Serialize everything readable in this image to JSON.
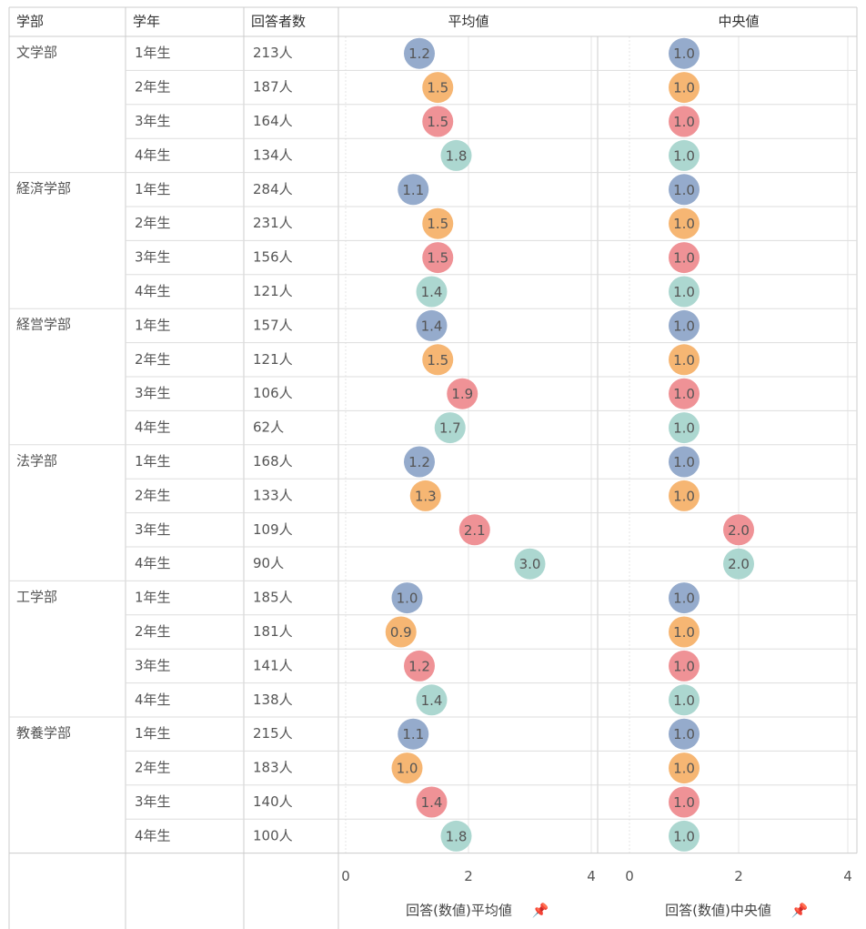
{
  "table": {
    "headers": [
      "学部",
      "学年",
      "回答者数"
    ],
    "faculties": [
      "文学部",
      "経済学部",
      "経営学部",
      "法学部",
      "工学部",
      "教養学部"
    ],
    "grades": [
      "1年生",
      "2年生",
      "3年生",
      "4年生"
    ],
    "respondents": [
      "213人",
      "187人",
      "164人",
      "134人",
      "284人",
      "231人",
      "156人",
      "121人",
      "157人",
      "121人",
      "106人",
      "62人",
      "168人",
      "133人",
      "109人",
      "90人",
      "185人",
      "181人",
      "141人",
      "138人",
      "215人",
      "183人",
      "140人",
      "100人"
    ]
  },
  "chart_data": [
    {
      "type": "dot",
      "title": "平均値",
      "axis_label": "回答(数値)平均値",
      "xlim": [
        0,
        4
      ],
      "xticks": [
        0,
        2,
        4
      ],
      "grid": true,
      "colors": [
        "#8fa6c9",
        "#f5b26b",
        "#ee8c90",
        "#a8d5ce"
      ],
      "values": [
        1.2,
        1.5,
        1.5,
        1.8,
        1.1,
        1.5,
        1.5,
        1.4,
        1.4,
        1.5,
        1.9,
        1.7,
        1.2,
        1.3,
        2.1,
        3.0,
        1.0,
        0.9,
        1.2,
        1.4,
        1.1,
        1.0,
        1.4,
        1.8
      ],
      "value_labels": [
        "1.2",
        "1.5",
        "1.5",
        "1.8",
        "1.1",
        "1.5",
        "1.5",
        "1.4",
        "1.4",
        "1.5",
        "1.9",
        "1.7",
        "1.2",
        "1.3",
        "2.1",
        "3.0",
        "1.0",
        "0.9",
        "1.2",
        "1.4",
        "1.1",
        "1.0",
        "1.4",
        "1.8"
      ]
    },
    {
      "type": "dot",
      "title": "中央値",
      "axis_label": "回答(数値)中央値",
      "xlim": [
        0,
        4
      ],
      "xticks": [
        0,
        2,
        4
      ],
      "grid": true,
      "colors": [
        "#8fa6c9",
        "#f5b26b",
        "#ee8c90",
        "#a8d5ce"
      ],
      "values": [
        1,
        1,
        1,
        1,
        1,
        1,
        1,
        1,
        1,
        1,
        1,
        1,
        1,
        1,
        2,
        2,
        1,
        1,
        1,
        1,
        1,
        1,
        1,
        1
      ],
      "value_labels": [
        "1.0",
        "1.0",
        "1.0",
        "1.0",
        "1.0",
        "1.0",
        "1.0",
        "1.0",
        "1.0",
        "1.0",
        "1.0",
        "1.0",
        "1.0",
        "1.0",
        "2.0",
        "2.0",
        "1.0",
        "1.0",
        "1.0",
        "1.0",
        "1.0",
        "1.0",
        "1.0",
        "1.0"
      ]
    }
  ]
}
